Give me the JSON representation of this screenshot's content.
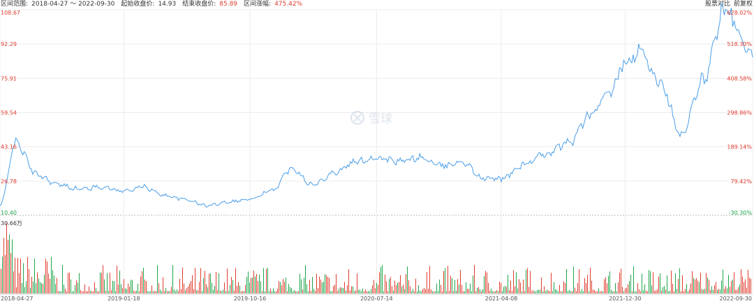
{
  "header": {
    "range_label": "区间范围:",
    "range_value": "2018-04-27 ～ 2022-09-30",
    "start_price_label": "起始收盘价:",
    "start_price_value": "14.93",
    "end_price_label": "结束收盘价:",
    "end_price_value": "85.89",
    "change_label": "区间涨幅:",
    "change_value": "475.42%",
    "compare_label": "股票对比",
    "adjust_label": "前复权"
  },
  "watermark": "雪球",
  "colors": {
    "line": "#4a9ee8",
    "up": "#e03c2d",
    "down": "#1ea54a",
    "grid": "#ececec",
    "baseline": "#bbbbbb"
  },
  "chart_data": {
    "type": "line",
    "title": "",
    "xlabel": "",
    "ylabel": "",
    "ylim": [
      10.4,
      108.67
    ],
    "y_ticks": [
      "108.67",
      "92.29",
      "75.91",
      "59.54",
      "43.16",
      "26.78",
      "10.40"
    ],
    "pct_ticks": [
      "628.02%",
      "518.30%",
      "408.58%",
      "298.86%",
      "189.14%",
      "79.42%",
      "-30.30%"
    ],
    "x_tick_labels": [
      "2018-04-27",
      "2019-01-18",
      "2019-10-16",
      "2020-07-14",
      "2021-04-08",
      "2021-12-30",
      "2022-09-30"
    ],
    "volume_max_label": "30.66万",
    "volume_max": 306600,
    "series": [
      {
        "x": [
          "2018-04-27",
          "2018-05-31",
          "2018-07-15",
          "2018-08-31",
          "2018-10-15",
          "2018-11-30",
          "2019-01-18",
          "2019-02-28",
          "2019-04-15",
          "2019-05-31",
          "2019-07-15",
          "2019-08-31",
          "2019-10-16",
          "2019-11-30",
          "2020-01-15",
          "2020-02-28",
          "2020-04-15",
          "2020-05-31",
          "2020-07-14",
          "2020-08-31",
          "2020-10-15",
          "2020-11-30",
          "2021-01-15",
          "2021-02-28",
          "2021-04-08",
          "2021-05-31",
          "2021-07-15",
          "2021-08-31",
          "2021-10-15",
          "2021-11-30",
          "2021-12-30",
          "2022-01-31",
          "2022-03-15",
          "2022-04-30",
          "2022-06-15",
          "2022-07-31",
          "2022-09-30"
        ],
        "values": [
          14.93,
          45.0,
          30.0,
          25.0,
          23.0,
          24.0,
          22.0,
          24.0,
          20.0,
          18.0,
          15.0,
          17.0,
          18.0,
          22.0,
          33.0,
          25.0,
          31.0,
          36.0,
          38.0,
          36.0,
          38.0,
          34.0,
          36.0,
          28.0,
          28.0,
          35.0,
          40.0,
          45.0,
          58.0,
          70.0,
          83.0,
          88.0,
          75.0,
          48.0,
          75.0,
          108.0,
          85.89
        ]
      }
    ]
  }
}
